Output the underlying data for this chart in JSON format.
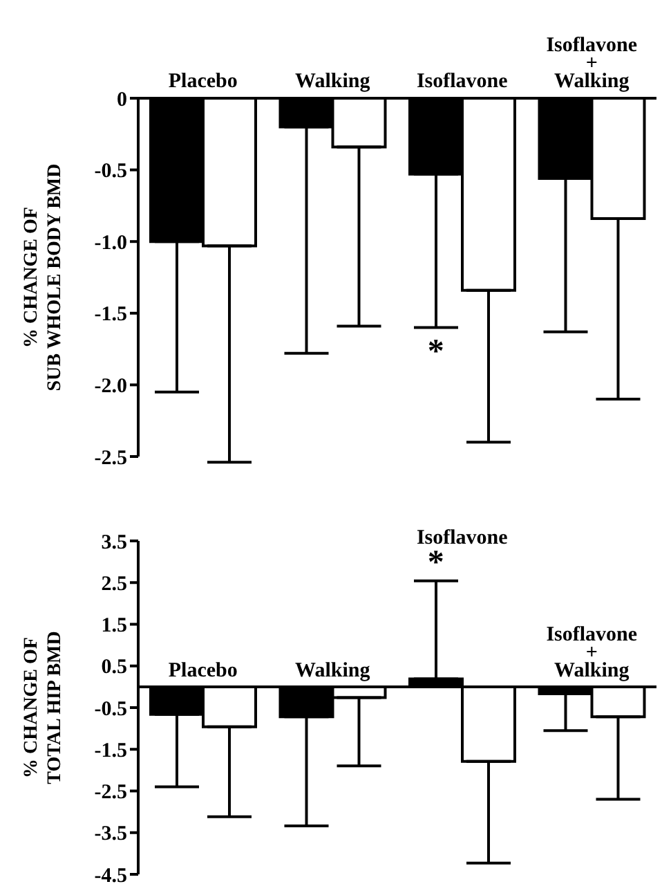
{
  "chart_data": [
    {
      "type": "bar",
      "ylabel": "% CHANGE OF\nSUB WHOLE BODY BMD",
      "categories": [
        "Placebo",
        "Walking",
        "Isoflavone",
        "Isoflavone\n+\nWalking"
      ],
      "series": [
        {
          "color": "#000000",
          "values": [
            -1.0,
            -0.2,
            -0.53,
            -0.56
          ],
          "errors": [
            [
              -2.05,
              -1.0
            ],
            [
              -1.78,
              -0.2
            ],
            [
              -1.6,
              -0.53
            ],
            [
              -1.63,
              -0.56
            ]
          ]
        },
        {
          "color": "#ffffff",
          "values": [
            -1.03,
            -0.34,
            -1.34,
            -0.84
          ],
          "errors": [
            [
              -2.54,
              -1.03
            ],
            [
              -1.59,
              -0.34
            ],
            [
              -2.4,
              -1.34
            ],
            [
              -2.1,
              -0.84
            ]
          ]
        }
      ],
      "ylim": [
        -2.5,
        0
      ],
      "yticks": [
        0,
        -0.5,
        {
          "value": -1,
          "label": "-1.0"
        },
        -1.5,
        {
          "value": -2,
          "label": "-2.0"
        },
        -2.5
      ],
      "annotations": [
        "*"
      ]
    },
    {
      "type": "bar",
      "ylabel": "% CHANGE OF\nTOTAL HIP BMD",
      "categories": [
        "Placebo",
        "Walking",
        "Isoflavone",
        "Isoflavone\n+\nWalking"
      ],
      "series": [
        {
          "color": "#000000",
          "values": [
            -0.66,
            -0.72,
            0.19,
            -0.17
          ],
          "errors": [
            [
              -2.4,
              -0.66
            ],
            [
              -3.34,
              -0.72
            ],
            [
              0.19,
              2.54
            ],
            [
              -1.05,
              -0.17
            ]
          ]
        },
        {
          "color": "#ffffff",
          "values": [
            -0.96,
            -0.26,
            -1.79,
            -0.72
          ],
          "errors": [
            [
              -3.12,
              -0.96
            ],
            [
              -1.9,
              -0.26
            ],
            [
              -4.23,
              -1.79
            ],
            [
              -2.7,
              -0.72
            ]
          ]
        }
      ],
      "ylim": [
        -4.5,
        3.5
      ],
      "yticks": [
        3.5,
        2.5,
        1.5,
        0.5,
        -0.5,
        -1.5,
        -2.5,
        -3.5,
        -4.5
      ],
      "annotations": [
        "*"
      ]
    }
  ]
}
